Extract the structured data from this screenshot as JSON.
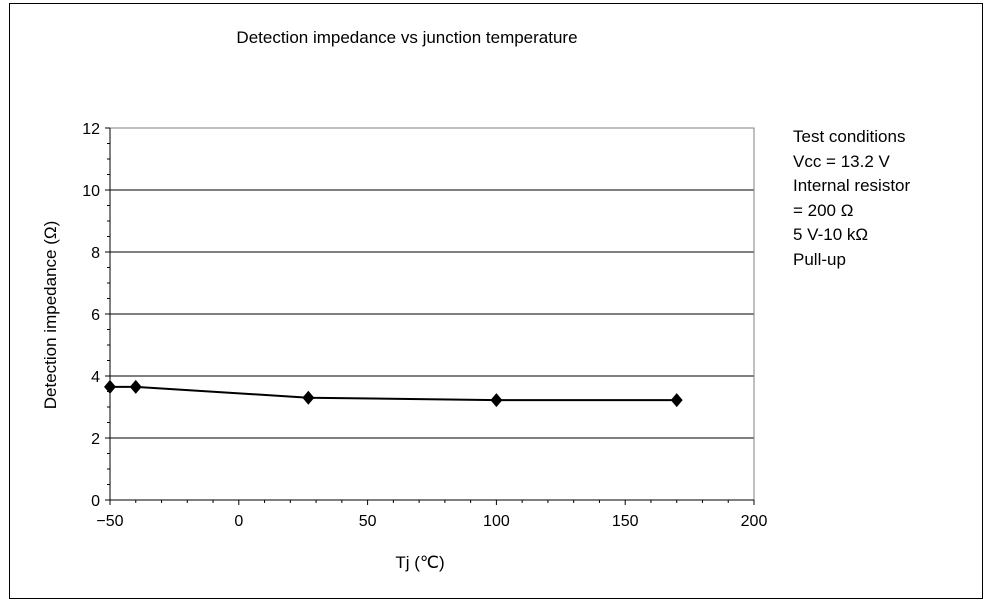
{
  "chart_data": {
    "type": "line",
    "title": "Detection impedance vs junction temperature",
    "xlabel": "Tj (℃)",
    "ylabel": "Detection impedance (Ω)",
    "xlim": [
      -50,
      200
    ],
    "ylim": [
      0,
      12
    ],
    "xticks": [
      -50,
      0,
      50,
      100,
      150,
      200
    ],
    "yticks": [
      0,
      2,
      4,
      6,
      8,
      10,
      12
    ],
    "grid": {
      "horizontal": true,
      "vertical": false
    },
    "series": [
      {
        "color": "#000000",
        "marker": "diamond",
        "x": [
          -50,
          -40,
          27,
          100,
          170
        ],
        "y": [
          3.65,
          3.65,
          3.3,
          3.22,
          3.22
        ]
      }
    ]
  },
  "notes": [
    "Test conditions",
    "Vcc = 13.2 V",
    "Internal resistor",
    "= 200 Ω",
    "5 V-10 kΩ",
    "Pull-up"
  ]
}
